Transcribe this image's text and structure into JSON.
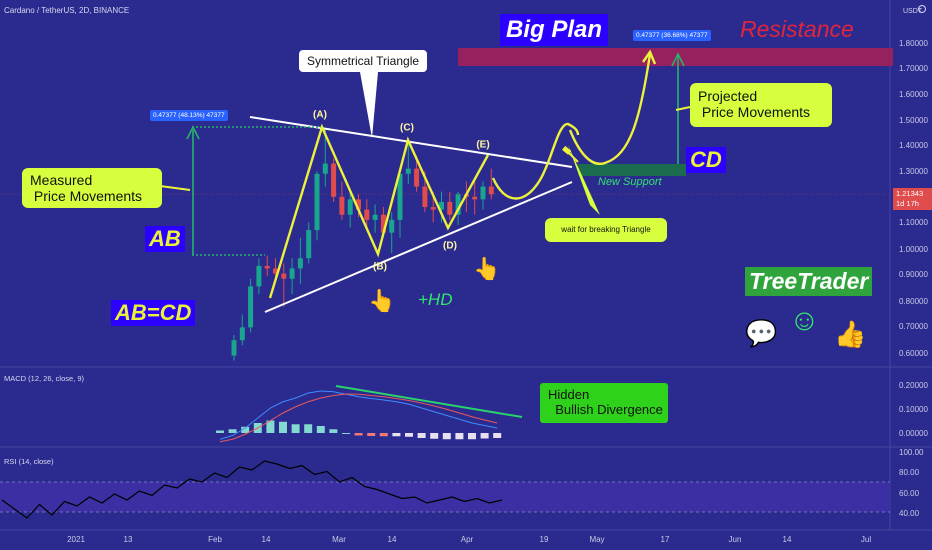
{
  "header": {
    "symbol": "Cardano / TetherUS, 2D, BINANCE"
  },
  "colors": {
    "background": "#2b2a8f",
    "up_candle": "#1aa58e",
    "down_candle": "#e04c4c",
    "accent_yellow": "#ecf23a",
    "trendline": "#ffffff",
    "resistance": "#a1205a",
    "support": "#1b6b4e",
    "macd_line": "#3f8cff",
    "signal_line": "#e65a5a",
    "rsi_line": "#000000"
  },
  "price_axis": {
    "currency": "USDT",
    "ticks": [
      "1.80000",
      "1.70000",
      "1.60000",
      "1.50000",
      "1.40000",
      "1.30000",
      "1.10000",
      "1.00000",
      "0.90000",
      "0.80000",
      "0.70000",
      "0.60000"
    ],
    "current_price": "1.21343",
    "countdown": "1d 17h"
  },
  "macd_axis": {
    "ticks": [
      "0.20000",
      "0.10000",
      "0.00000"
    ]
  },
  "rsi_axis": {
    "ticks": [
      "100.00",
      "80.00",
      "60.00",
      "40.00"
    ]
  },
  "date_axis": {
    "ticks": [
      "2021",
      "13",
      "Feb",
      "14",
      "Mar",
      "14",
      "Apr",
      "19",
      "May",
      "17",
      "Jun",
      "14",
      "Jul"
    ]
  },
  "indicators": {
    "macd_label": "MACD (12, 26, close, 9)",
    "rsi_label": "RSI (14, close)"
  },
  "annotations": {
    "big_plan": "Big Plan",
    "resistance": "Resistance",
    "symmetrical_triangle": "Symmetrical Triangle",
    "measured": "Measured\n Price Movements",
    "projected": "Projected\n Price Movements",
    "wait": "wait for breaking Triangle",
    "new_support": "New Support",
    "hidden_divergence": "Hidden\n  Bullish Divergence",
    "ab": "AB",
    "cd": "CD",
    "ab_cd": "AB=CD",
    "hd": "+HD",
    "treetrader": "TreeTrader",
    "range_ab": "0.47377 (48.13%) 47377",
    "range_cd": "0.47377 (36.68%) 47377",
    "points": {
      "a": "(A)",
      "b": "(B)",
      "c": "(C)",
      "d": "(D)",
      "e": "(E)"
    },
    "emojis": {
      "pointer": "👆",
      "speech": "💬",
      "smile": "☺",
      "thumbs": "👍"
    }
  },
  "chart_data": [
    {
      "type": "candlestick",
      "title": "Cardano / TetherUS, 2D, BINANCE",
      "xlabel": "",
      "ylabel": "",
      "ylim": [
        0.55,
        1.92
      ],
      "x": [
        "Feb 06",
        "Feb 08",
        "Feb 10",
        "Feb 12",
        "Feb 14",
        "Feb 16",
        "Feb 18",
        "Feb 20",
        "Feb 22",
        "Feb 24",
        "Feb 26",
        "Feb 28",
        "Mar 02",
        "Mar 04",
        "Mar 06",
        "Mar 08",
        "Mar 10",
        "Mar 12",
        "Mar 14",
        "Mar 16",
        "Mar 18",
        "Mar 20",
        "Mar 22",
        "Mar 24",
        "Mar 26",
        "Mar 28",
        "Mar 30",
        "Apr 01",
        "Apr 03",
        "Apr 05",
        "Apr 07",
        "Apr 09"
      ],
      "open": [
        0.58,
        0.64,
        0.69,
        0.85,
        0.93,
        0.92,
        0.9,
        0.88,
        0.92,
        0.96,
        1.07,
        1.29,
        1.33,
        1.2,
        1.13,
        1.19,
        1.15,
        1.11,
        1.13,
        1.06,
        1.11,
        1.29,
        1.31,
        1.24,
        1.16,
        1.15,
        1.18,
        1.13,
        1.21,
        1.2,
        1.19,
        1.24
      ],
      "high": [
        0.66,
        0.74,
        0.88,
        0.96,
        0.97,
        0.96,
        0.94,
        0.96,
        1.04,
        1.1,
        1.3,
        1.47,
        1.35,
        1.26,
        1.22,
        1.21,
        1.19,
        1.17,
        1.16,
        1.14,
        1.3,
        1.41,
        1.36,
        1.3,
        1.22,
        1.22,
        1.22,
        1.22,
        1.26,
        1.26,
        1.26,
        1.31
      ],
      "low": [
        0.56,
        0.62,
        0.67,
        0.82,
        0.89,
        0.88,
        0.77,
        0.82,
        0.86,
        0.94,
        1.03,
        1.24,
        1.18,
        1.11,
        1.08,
        1.12,
        1.08,
        1.06,
        1.05,
        0.98,
        1.04,
        1.25,
        1.22,
        1.14,
        1.1,
        1.1,
        1.11,
        1.09,
        1.14,
        1.13,
        1.15,
        1.19
      ],
      "close": [
        0.64,
        0.69,
        0.85,
        0.93,
        0.92,
        0.9,
        0.88,
        0.92,
        0.96,
        1.07,
        1.29,
        1.33,
        1.2,
        1.13,
        1.19,
        1.15,
        1.11,
        1.13,
        1.06,
        1.11,
        1.29,
        1.31,
        1.24,
        1.16,
        1.15,
        1.18,
        1.13,
        1.21,
        1.2,
        1.19,
        1.24,
        1.21
      ],
      "points": [
        {
          "label": "(A)",
          "x": "Feb 28",
          "y": 1.46
        },
        {
          "label": "(B)",
          "x": "Mar 16",
          "y": 0.99
        },
        {
          "label": "(C)",
          "x": "Mar 20",
          "y": 1.41
        },
        {
          "label": "(D)",
          "x": "Apr 01",
          "y": 1.08
        },
        {
          "label": "(E)",
          "x": "Apr 09",
          "y": 1.31
        }
      ],
      "ranges": [
        {
          "label": "0.47377 (48.13%) 47377"
        },
        {
          "label": "0.47377 (36.68%) 47377"
        }
      ]
    },
    {
      "type": "line",
      "title": "MACD (12, 26, close, 9)",
      "ylim": [
        -0.02,
        0.22
      ],
      "series": [
        {
          "values": [
            0.015,
            0.03,
            0.06,
            0.1,
            0.14,
            0.165,
            0.18,
            0.2,
            0.208,
            0.205,
            0.195,
            0.185,
            0.178,
            0.172,
            0.165,
            0.155,
            0.14,
            0.125,
            0.11,
            0.095,
            0.08,
            0.07,
            0.06
          ]
        },
        {
          "values": [
            0.005,
            0.015,
            0.035,
            0.06,
            0.09,
            0.12,
            0.145,
            0.165,
            0.18,
            0.19,
            0.196,
            0.195,
            0.19,
            0.185,
            0.178,
            0.17,
            0.16,
            0.148,
            0.135,
            0.12,
            0.105,
            0.092,
            0.08
          ]
        }
      ],
      "histogram": [
        0.01,
        0.015,
        0.025,
        0.04,
        0.05,
        0.045,
        0.035,
        0.035,
        0.028,
        0.015,
        0.0,
        -0.01,
        -0.012,
        -0.013,
        -0.013,
        -0.015,
        -0.02,
        -0.023,
        -0.025,
        -0.025,
        -0.025,
        -0.022,
        -0.02
      ]
    },
    {
      "type": "line",
      "title": "RSI (14, close)",
      "ylim": [
        30,
        100
      ],
      "series": [
        {
          "values": [
            58,
            52,
            46,
            55,
            48,
            57,
            54,
            60,
            56,
            62,
            58,
            64,
            61,
            68,
            66,
            72,
            70,
            76,
            73,
            80,
            78,
            84,
            82,
            79,
            81,
            75,
            77,
            70,
            73,
            67,
            65,
            62,
            59,
            60,
            56,
            58,
            60,
            57,
            59,
            56,
            58
          ]
        }
      ]
    }
  ]
}
